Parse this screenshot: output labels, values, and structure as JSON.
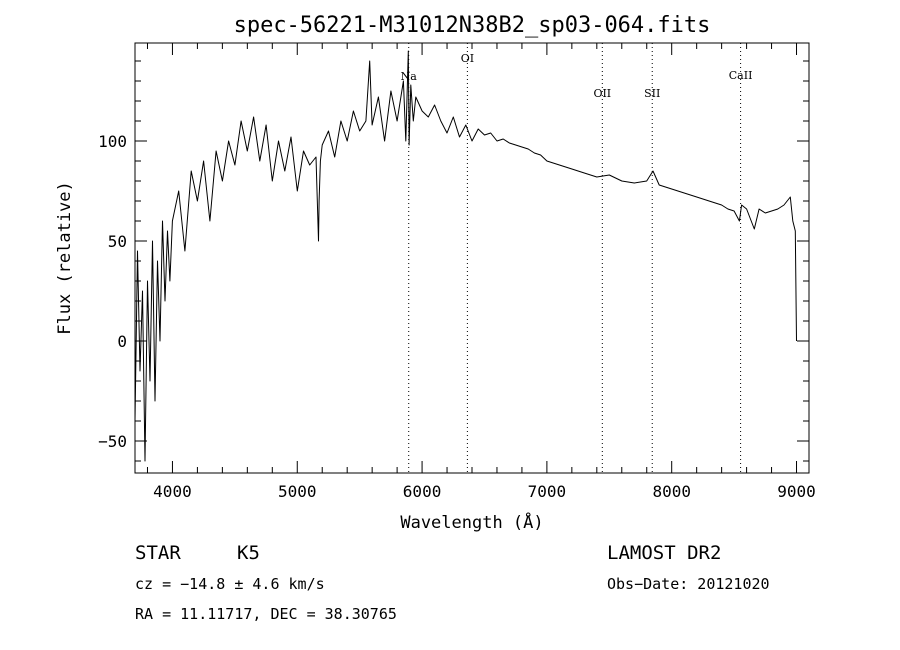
{
  "chart_data": {
    "type": "line",
    "title": "spec-56221-M31012N38B2_sp03-064.fits",
    "xlabel": "Wavelength (Å)",
    "ylabel": "Flux (relative)",
    "xlim": [
      3700,
      9100
    ],
    "ylim": [
      -66,
      149
    ],
    "x_ticks": [
      4000,
      5000,
      6000,
      7000,
      8000,
      9000
    ],
    "y_ticks": [
      -50,
      0,
      50,
      100
    ],
    "grid": false,
    "series": [
      {
        "x": [
          3700,
          3720,
          3740,
          3760,
          3780,
          3800,
          3820,
          3840,
          3860,
          3880,
          3900,
          3920,
          3940,
          3960,
          3980,
          4000,
          4050,
          4100,
          4150,
          4200,
          4250,
          4300,
          4350,
          4400,
          4450,
          4500,
          4550,
          4600,
          4650,
          4700,
          4750,
          4800,
          4850,
          4900,
          4950,
          5000,
          5050,
          5100,
          5150,
          5170,
          5175,
          5185,
          5200,
          5250,
          5300,
          5350,
          5400,
          5450,
          5500,
          5550,
          5580,
          5600,
          5650,
          5700,
          5750,
          5800,
          5850,
          5870,
          5890,
          5896,
          5910,
          5930,
          5950,
          6000,
          6050,
          6100,
          6150,
          6200,
          6250,
          6300,
          6350,
          6400,
          6450,
          6500,
          6550,
          6600,
          6650,
          6700,
          6750,
          6800,
          6850,
          6900,
          6950,
          7000,
          7100,
          7200,
          7300,
          7400,
          7500,
          7600,
          7700,
          7800,
          7850,
          7900,
          8000,
          8100,
          8200,
          8300,
          8400,
          8450,
          8500,
          8542,
          8560,
          8600,
          8662,
          8700,
          8750,
          8800,
          8850,
          8900,
          8950,
          8970,
          8990,
          9000
        ],
        "y": [
          -40,
          45,
          -15,
          25,
          -60,
          30,
          -20,
          50,
          -30,
          40,
          0,
          60,
          20,
          55,
          30,
          60,
          75,
          45,
          85,
          70,
          90,
          60,
          95,
          80,
          100,
          88,
          110,
          95,
          112,
          90,
          108,
          80,
          100,
          85,
          102,
          75,
          95,
          88,
          92,
          50,
          70,
          90,
          98,
          105,
          92,
          110,
          100,
          115,
          105,
          110,
          140,
          108,
          122,
          100,
          125,
          110,
          130,
          100,
          145,
          98,
          128,
          110,
          122,
          115,
          112,
          118,
          110,
          104,
          112,
          102,
          108,
          100,
          106,
          103,
          104,
          100,
          101,
          99,
          98,
          97,
          96,
          94,
          93,
          90,
          88,
          86,
          84,
          82,
          83,
          80,
          79,
          80,
          85,
          78,
          76,
          74,
          72,
          70,
          68,
          66,
          65,
          60,
          68,
          66,
          56,
          66,
          64,
          65,
          66,
          68,
          72,
          60,
          55,
          0
        ]
      }
    ],
    "line_markers": [
      {
        "label": "Na",
        "x": 5893
      },
      {
        "label": "OI",
        "x": 6363
      },
      {
        "label": "OII",
        "x": 7444
      },
      {
        "label": "SII",
        "x": 7844
      },
      {
        "label": "CaII",
        "x": 8552
      }
    ]
  },
  "info": {
    "class": "STAR",
    "subclass": "K5",
    "survey": "LAMOST DR2",
    "cz": "cz = −14.8 ± 4.6 km/s",
    "obs_date": "Obs−Date: 20121020",
    "coords": "RA =  11.11717, DEC =  38.30765"
  }
}
